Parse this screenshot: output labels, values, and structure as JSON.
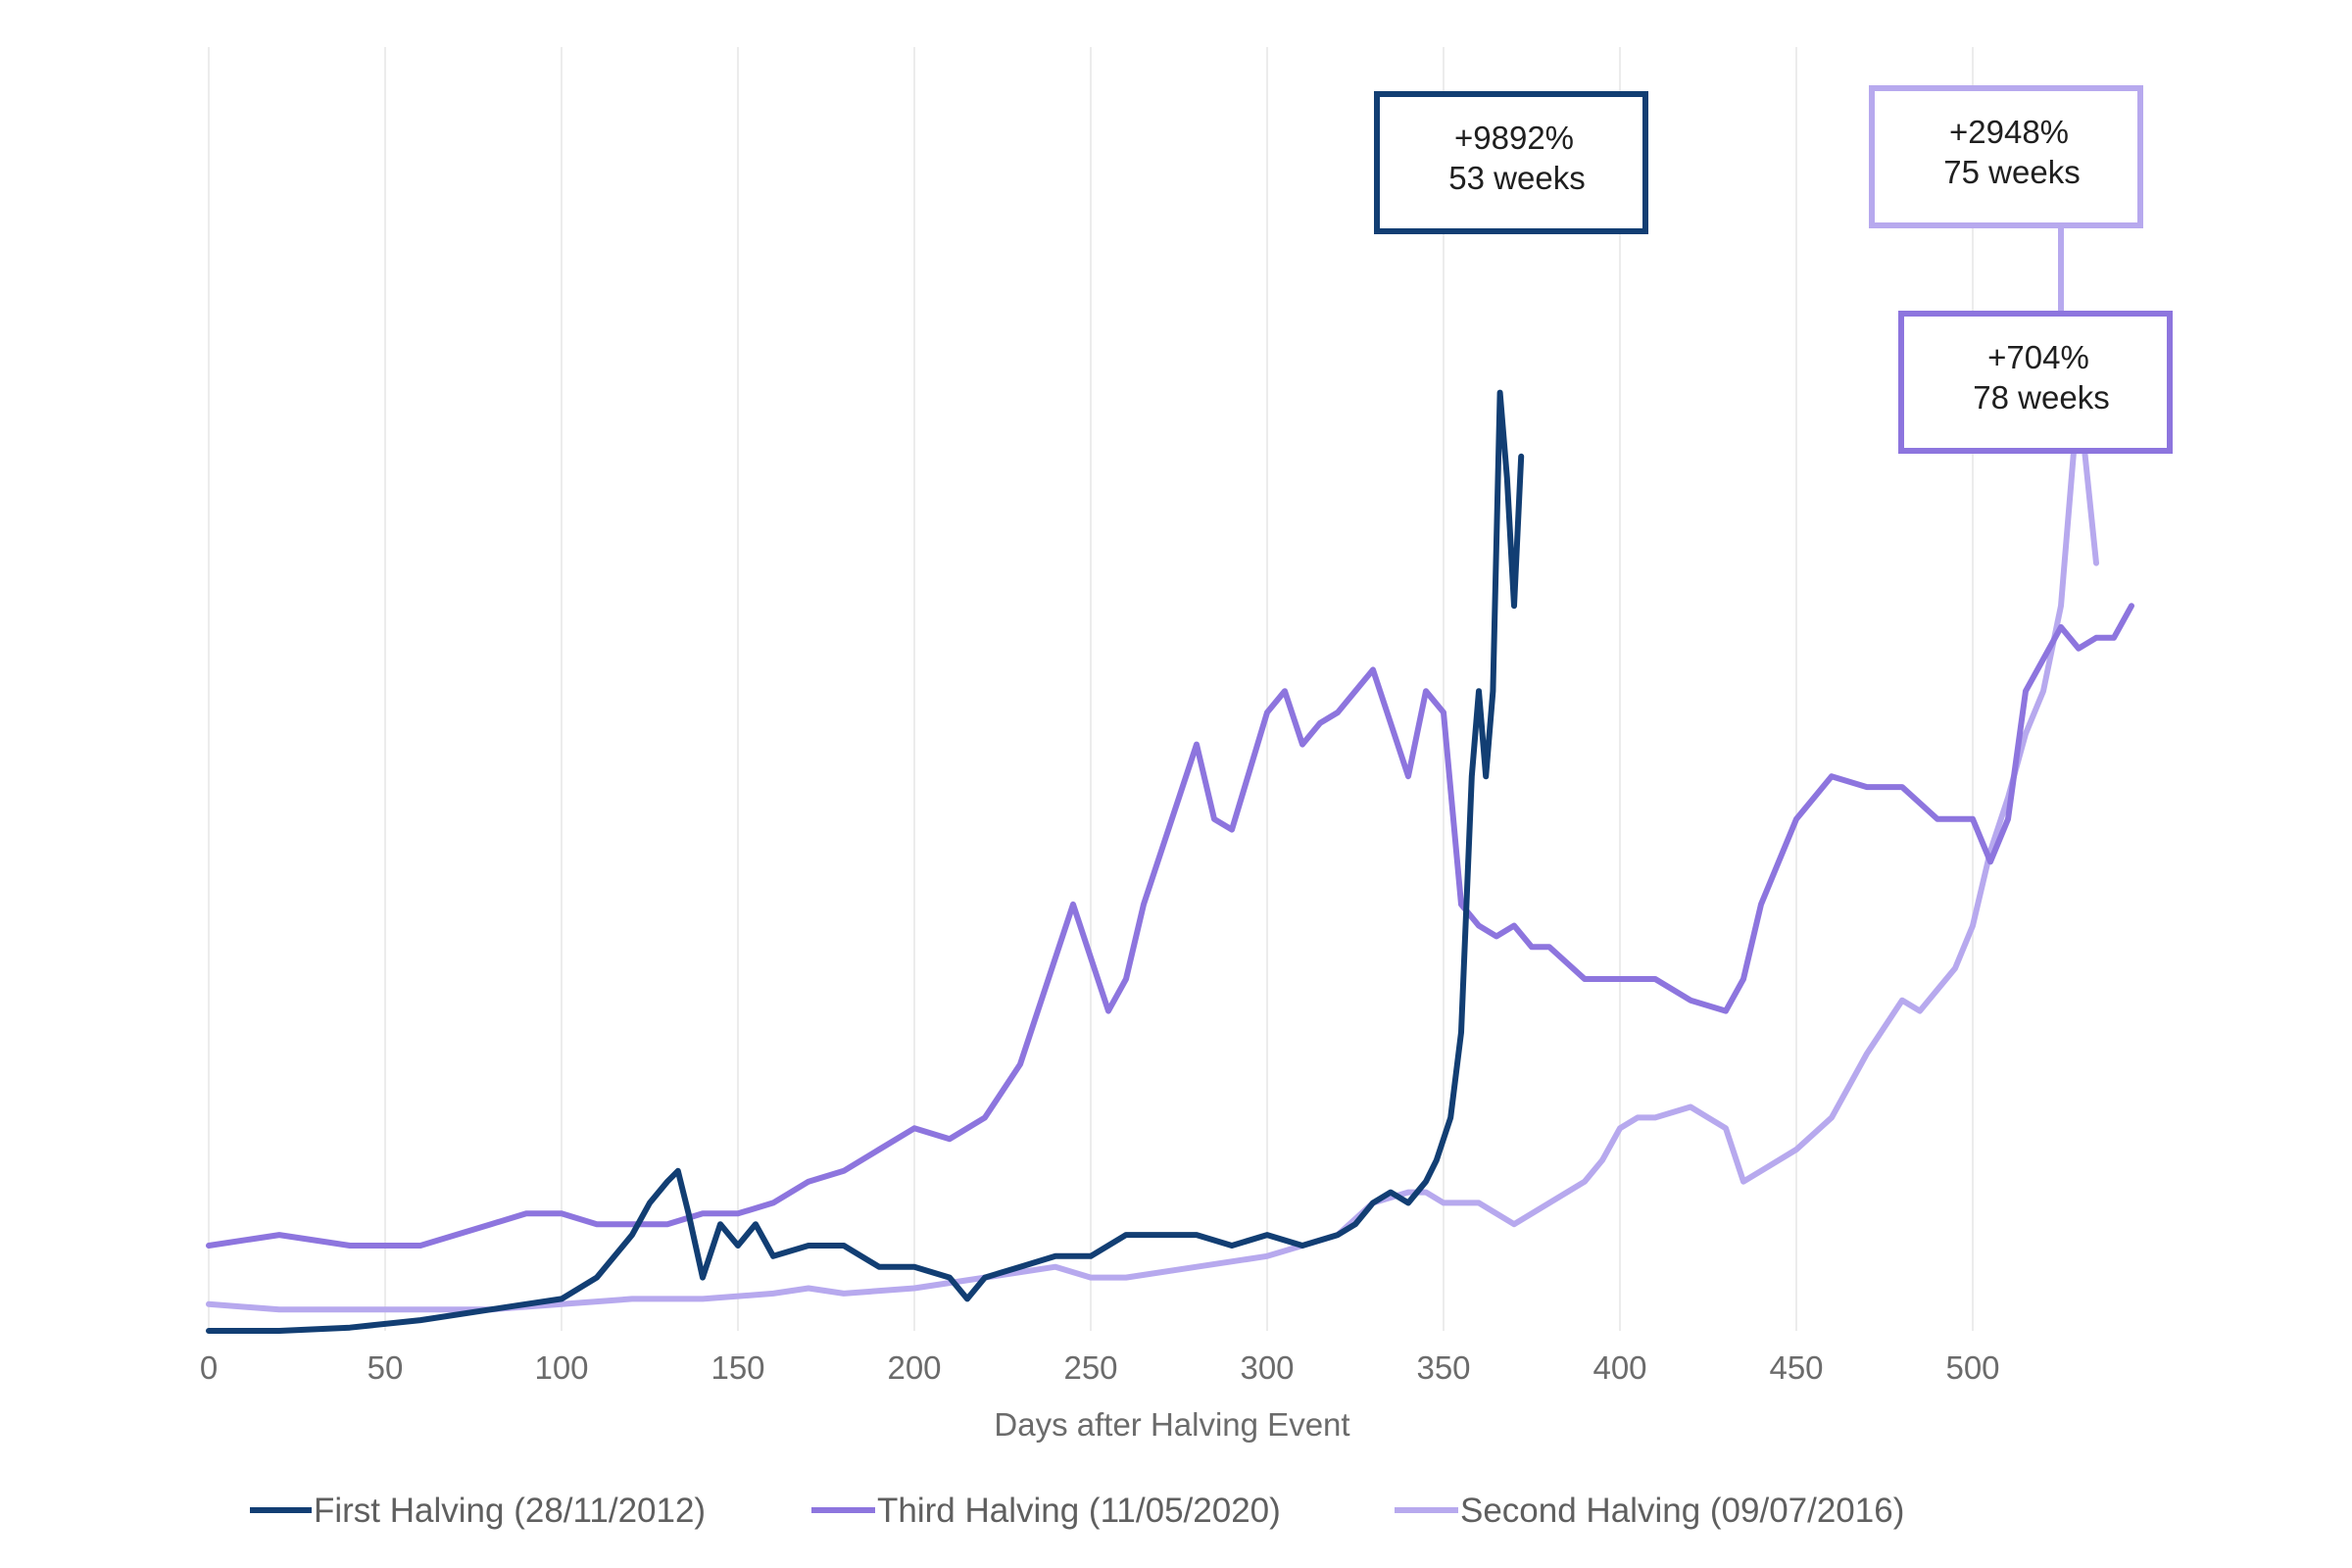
{
  "chart_data": {
    "type": "line",
    "title": "",
    "xlabel": "Days after Halving Event",
    "ylabel": "",
    "xlim": [
      0,
      550
    ],
    "ylim": [
      0,
      100
    ],
    "x_ticks": [
      0,
      50,
      100,
      150,
      200,
      250,
      300,
      350,
      400,
      450,
      500
    ],
    "x_tick_labels": [
      "0",
      "50",
      "100",
      "150",
      "200",
      "250",
      "300",
      "350",
      "400",
      "450",
      "500"
    ],
    "grid": "vertical",
    "y_axis_visible": false,
    "legend_position": "bottom",
    "colors": {
      "first": "#123e73",
      "third": "#8d75de",
      "second": "#b7a9ee",
      "grid": "#ececec",
      "tick_text": "#6b6b6b"
    },
    "series": [
      {
        "name": "First Halving (28/11/2012)",
        "color": "#123e73",
        "x": [
          0,
          20,
          40,
          60,
          80,
          100,
          110,
          120,
          125,
          130,
          133,
          136,
          140,
          145,
          150,
          155,
          160,
          170,
          180,
          190,
          200,
          210,
          215,
          220,
          230,
          240,
          250,
          260,
          270,
          280,
          290,
          300,
          310,
          320,
          325,
          330,
          335,
          340,
          345,
          348,
          352,
          355,
          358,
          360,
          362,
          364,
          366,
          368,
          370,
          372
        ],
        "values": [
          0,
          0,
          0.3,
          1,
          2,
          3,
          5,
          9,
          12,
          14,
          15,
          11,
          5,
          10,
          8,
          10,
          7,
          8,
          8,
          6,
          6,
          5,
          3,
          5,
          6,
          7,
          7,
          9,
          9,
          9,
          8,
          9,
          8,
          9,
          10,
          12,
          13,
          12,
          14,
          16,
          20,
          28,
          52,
          60,
          52,
          60,
          88,
          80,
          68,
          82
        ]
      },
      {
        "name": "Third Halving (11/05/2020)",
        "color": "#8d75de",
        "x": [
          0,
          20,
          40,
          60,
          70,
          80,
          90,
          100,
          110,
          120,
          130,
          140,
          150,
          160,
          170,
          180,
          190,
          200,
          210,
          220,
          230,
          235,
          240,
          245,
          250,
          255,
          260,
          265,
          270,
          280,
          285,
          290,
          300,
          305,
          310,
          315,
          320,
          325,
          330,
          335,
          340,
          345,
          350,
          355,
          360,
          365,
          370,
          375,
          380,
          390,
          400,
          410,
          420,
          430,
          435,
          440,
          450,
          460,
          470,
          480,
          490,
          500,
          505,
          510,
          515,
          520,
          525,
          530,
          535,
          540,
          545
        ],
        "values": [
          8,
          9,
          8,
          8,
          9,
          10,
          11,
          11,
          10,
          10,
          10,
          11,
          11,
          12,
          14,
          15,
          17,
          19,
          18,
          20,
          25,
          30,
          35,
          40,
          35,
          30,
          33,
          40,
          45,
          55,
          48,
          47,
          58,
          60,
          55,
          57,
          58,
          60,
          62,
          57,
          52,
          60,
          58,
          40,
          38,
          37,
          38,
          36,
          36,
          33,
          33,
          33,
          31,
          30,
          33,
          40,
          48,
          52,
          51,
          51,
          48,
          48,
          44,
          48,
          60,
          63,
          66,
          64,
          65,
          65,
          68
        ]
      },
      {
        "name": "Second Halving (09/07/2016)",
        "color": "#b7a9ee",
        "x": [
          0,
          20,
          40,
          60,
          80,
          100,
          120,
          140,
          160,
          170,
          180,
          200,
          220,
          240,
          250,
          260,
          280,
          300,
          310,
          320,
          330,
          340,
          345,
          350,
          360,
          370,
          375,
          380,
          390,
          395,
          400,
          405,
          410,
          420,
          425,
          430,
          435,
          440,
          450,
          460,
          470,
          480,
          485,
          490,
          495,
          500,
          505,
          510,
          515,
          520,
          525,
          530,
          535
        ],
        "values": [
          2.5,
          2,
          2,
          2,
          2,
          2.5,
          3,
          3,
          3.5,
          4,
          3.5,
          4,
          5,
          6,
          5,
          5,
          6,
          7,
          8,
          9,
          12,
          13,
          13,
          12,
          12,
          10,
          11,
          12,
          14,
          16,
          19,
          20,
          20,
          21,
          20,
          19,
          14,
          15,
          17,
          20,
          26,
          31,
          30,
          32,
          34,
          38,
          45,
          50,
          56,
          60,
          68,
          88,
          72
        ]
      }
    ],
    "annotations": [
      {
        "series": "First Halving (28/11/2012)",
        "line1": "+9892%",
        "line2": "53 weeks"
      },
      {
        "series": "Second Halving (09/07/2016)",
        "line1": "+2948%",
        "line2": "75 weeks"
      },
      {
        "series": "Third Halving (11/05/2020)",
        "line1": "+704%",
        "line2": "78 weeks"
      }
    ]
  }
}
